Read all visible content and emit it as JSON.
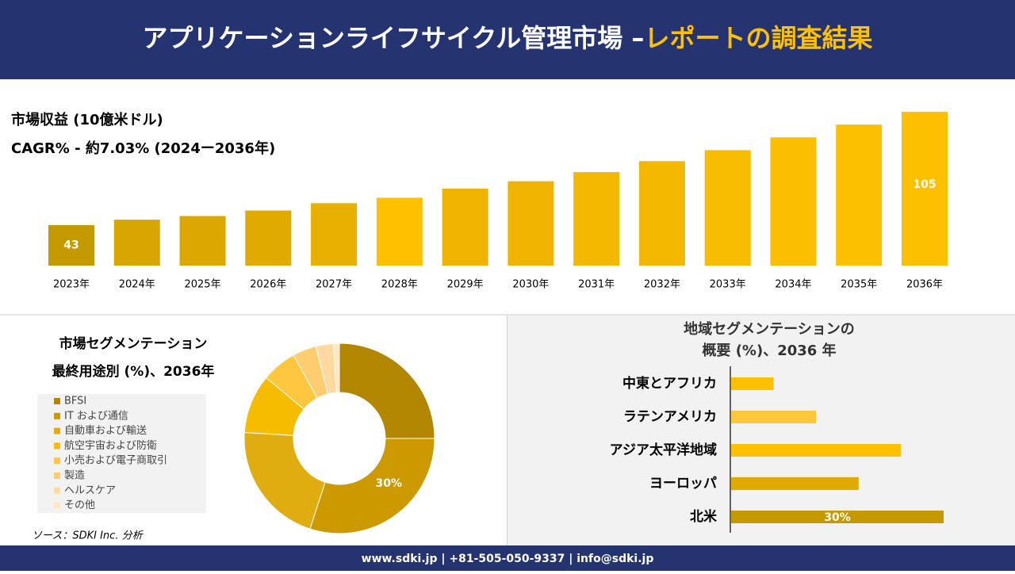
{
  "header": {
    "title": "アプリケーションライフサイクル管理市場 –",
    "title_highlight": "レポートの調査結果"
  },
  "chart_data": [
    {
      "type": "bar",
      "title": "市場収益 (10億米ドル)",
      "subtitle": "CAGR% - 約7.03% (2024ー2036年)",
      "categories": [
        "2023年",
        "2024年",
        "2025年",
        "2026年",
        "2027年",
        "2028年",
        "2029年",
        "2030年",
        "2031年",
        "2032年",
        "2033年",
        "2034年",
        "2035年",
        "2036年"
      ],
      "values": [
        43,
        46,
        48,
        51,
        55,
        58,
        63,
        67,
        72,
        78,
        84,
        91,
        98,
        105
      ],
      "value_labels": [
        "43",
        null,
        null,
        null,
        null,
        null,
        null,
        null,
        null,
        null,
        null,
        null,
        null,
        "105"
      ],
      "colors": [
        "#c49a00",
        "#d8a600",
        "#dca800",
        "#e0aa00",
        "#e8b000",
        "#ffc000",
        "#f0b400",
        "#f0b400",
        "#f4b800",
        "#f4b800",
        "#f8bc00",
        "#fbbe00",
        "#fdc000",
        "#fec000"
      ]
    },
    {
      "type": "donut",
      "title": "市場セグメンテーション",
      "subtitle": "最終用途別 (%)、2036年",
      "categories": [
        "BFSI",
        "IT および通信",
        "自動車および輸送",
        "航空宇宙および防衛",
        "小売および電子商取引",
        "製造",
        "ヘルスケア",
        "その他"
      ],
      "values": [
        25,
        30,
        21,
        10,
        6,
        4,
        3,
        1
      ],
      "value_labels": [
        null,
        "30%",
        null,
        null,
        null,
        null,
        null,
        null
      ],
      "colors": [
        "#b38600",
        "#cc9a00",
        "#e0ad10",
        "#f5bc00",
        "#ffc640",
        "#ffcc70",
        "#ffd9a0",
        "#ffe6c4"
      ]
    },
    {
      "type": "hbar",
      "title": "地域セグメンテーションの",
      "subtitle": "概要 (%)、2036 年",
      "categories": [
        "中東とアフリカ",
        "ラテンアメリカ",
        "アジア太平洋地域",
        "ヨーロッパ",
        "北米"
      ],
      "values": [
        6,
        12,
        24,
        18,
        30
      ],
      "value_labels": [
        null,
        null,
        null,
        null,
        "30%"
      ],
      "colors": [
        "#ffc000",
        "#ffc83a",
        "#ffc000",
        "#e0aa00",
        "#c49a00"
      ]
    }
  ],
  "source": "ソース：SDKI Inc. 分析",
  "footer": "www.sdki.jp | +81-505-050-9337 | info@sdki.jp"
}
